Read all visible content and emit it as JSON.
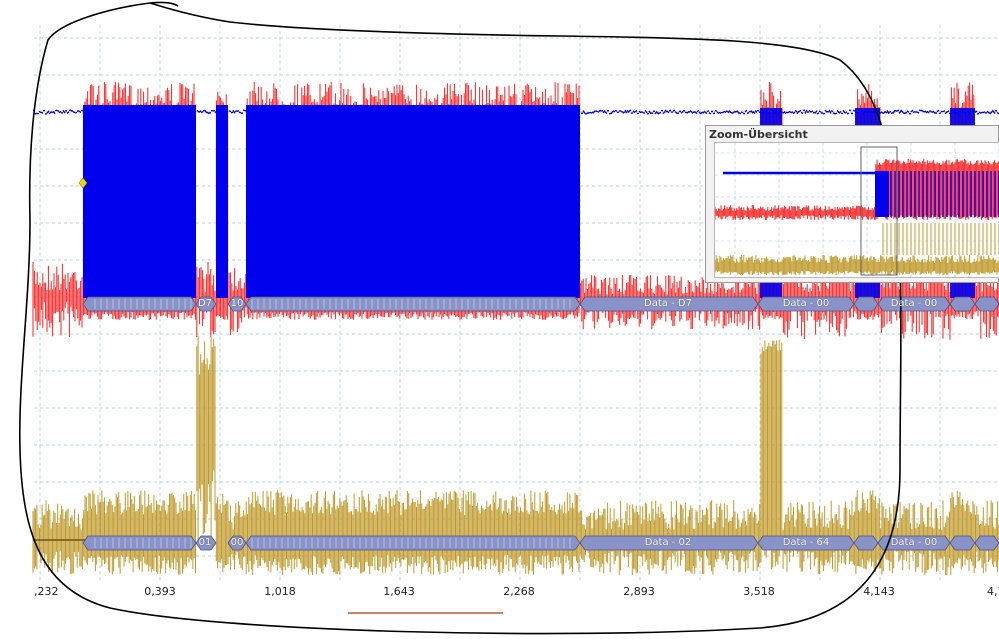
{
  "x_axis": {
    "ticks": [
      ",232",
      "0,393",
      "1,018",
      "1,643",
      "2,268",
      "2,893",
      "3,518",
      "4,143",
      "4,7"
    ]
  },
  "channel_top": {
    "color_blue": "#0000ee",
    "color_red": "#ff2020",
    "decode_labels": [
      "D7",
      "10",
      "Data - D7",
      "Data - 00",
      "Data - 00"
    ]
  },
  "channel_bottom": {
    "color": "#c0992a",
    "decode_labels": [
      "01",
      "00",
      "Data - 02",
      "Data - 64",
      "Data - 00"
    ]
  },
  "zoom_overview": {
    "title": "Zoom-Übersicht"
  },
  "colors": {
    "grid": "#9ec9dc",
    "decode_bar": "#8a93c8",
    "annotation_stroke": "#000000"
  }
}
